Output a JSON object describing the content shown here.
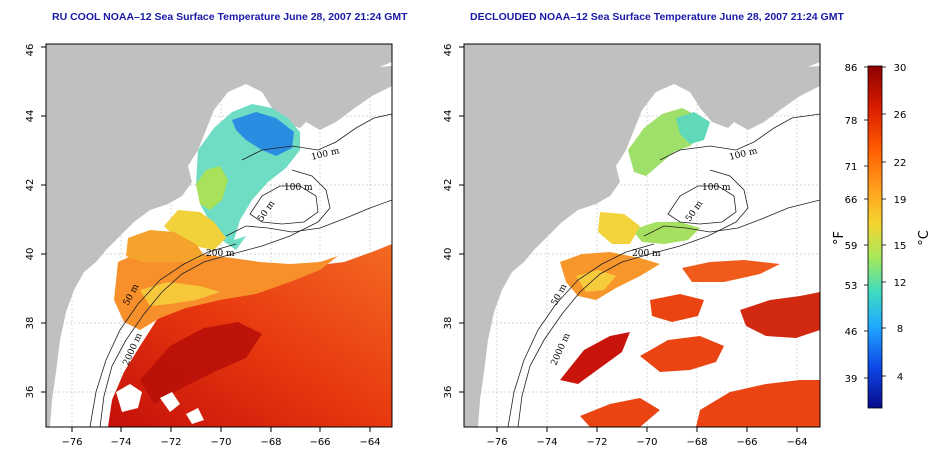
{
  "panels": [
    {
      "title": "RU COOL NOAA–12 Sea Surface Temperature June 28, 2007 21:24 GMT",
      "contour_labels": [
        "100 m",
        "100 m",
        "50 m",
        "200 m",
        "50 m",
        "2000 m"
      ]
    },
    {
      "title": "DECLOUDED NOAA–12 Sea Surface Temperature June 28, 2007 21:24 GMT",
      "contour_labels": [
        "100 m",
        "100 m",
        "50 m",
        "200 m",
        "50 m",
        "2000 m"
      ]
    }
  ],
  "axes": {
    "x_ticks": [
      "−76",
      "−74",
      "−72",
      "−70",
      "−68",
      "−66",
      "−64"
    ],
    "y_ticks": [
      "36",
      "38",
      "40",
      "42",
      "44",
      "46"
    ],
    "xlim": [
      -77.2,
      -63.0
    ],
    "ylim": [
      35.0,
      46.0
    ]
  },
  "colorbar": {
    "fahrenheit_ticks": [
      "86",
      "78",
      "71",
      "66",
      "59",
      "53",
      "46",
      "39"
    ],
    "celsius_ticks": [
      "30",
      "26",
      "22",
      "19",
      "15",
      "12",
      "8",
      "4"
    ],
    "fahrenheit_unit": "°F",
    "celsius_unit": "°C",
    "colors": [
      "#8b0000",
      "#d21d00",
      "#ff5a00",
      "#ff9a1e",
      "#f3d232",
      "#9ee35a",
      "#3fd7c2",
      "#1ca6ff",
      "#0c3fe0",
      "#0a0a8f"
    ]
  },
  "colors": {
    "land": "#c0c0c0",
    "title": "#1a1aa8"
  }
}
